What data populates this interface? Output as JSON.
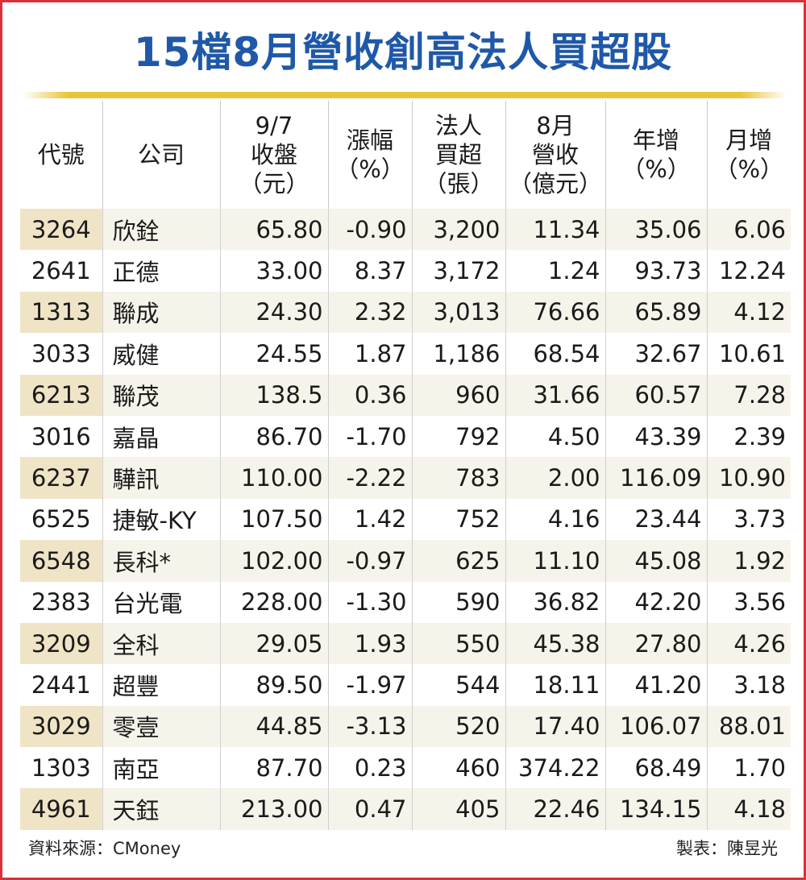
{
  "title": "15檔8月營收創高法人買超股",
  "columns": [
    [
      "代號"
    ],
    [
      "公司"
    ],
    [
      "9/7",
      "收盤",
      "（元）"
    ],
    [
      "漲幅",
      "（%）"
    ],
    [
      "法人",
      "買超",
      "（張）"
    ],
    [
      "8月",
      "營收",
      "（億元）"
    ],
    [
      "年增",
      "（%）"
    ],
    [
      "月增",
      "（%）"
    ]
  ],
  "rows": [
    [
      "3264",
      "欣銓",
      "65.80",
      "-0.90",
      "3,200",
      "11.34",
      "35.06",
      "6.06"
    ],
    [
      "2641",
      "正德",
      "33.00",
      "8.37",
      "3,172",
      "1.24",
      "93.73",
      "12.24"
    ],
    [
      "1313",
      "聯成",
      "24.30",
      "2.32",
      "3,013",
      "76.66",
      "65.89",
      "4.12"
    ],
    [
      "3033",
      "威健",
      "24.55",
      "1.87",
      "1,186",
      "68.54",
      "32.67",
      "10.61"
    ],
    [
      "6213",
      "聯茂",
      "138.5",
      "0.36",
      "960",
      "31.66",
      "60.57",
      "7.28"
    ],
    [
      "3016",
      "嘉晶",
      "86.70",
      "-1.70",
      "792",
      "4.50",
      "43.39",
      "2.39"
    ],
    [
      "6237",
      "驊訊",
      "110.00",
      "-2.22",
      "783",
      "2.00",
      "116.09",
      "10.90"
    ],
    [
      "6525",
      "捷敏-KY",
      "107.50",
      "1.42",
      "752",
      "4.16",
      "23.44",
      "3.73"
    ],
    [
      "6548",
      "長科*",
      "102.00",
      "-0.97",
      "625",
      "11.10",
      "45.08",
      "1.92"
    ],
    [
      "2383",
      "台光電",
      "228.00",
      "-1.30",
      "590",
      "36.82",
      "42.20",
      "3.56"
    ],
    [
      "3209",
      "全科",
      "29.05",
      "1.93",
      "550",
      "45.38",
      "27.80",
      "4.26"
    ],
    [
      "2441",
      "超豐",
      "89.50",
      "-1.97",
      "544",
      "18.11",
      "41.20",
      "3.18"
    ],
    [
      "3029",
      "零壹",
      "44.85",
      "-3.13",
      "520",
      "17.40",
      "106.07",
      "88.01"
    ],
    [
      "1303",
      "南亞",
      "87.70",
      "0.23",
      "460",
      "374.22",
      "68.49",
      "1.70"
    ],
    [
      "4961",
      "天鈺",
      "213.00",
      "0.47",
      "405",
      "22.46",
      "134.15",
      "4.18"
    ]
  ],
  "footer": {
    "source": "資料來源：CMoney",
    "author": "製表：陳昱光"
  },
  "colors": {
    "title": "#1f58a8",
    "rule": "#e9c43a",
    "border": "#d8313a",
    "code_shade": "#efe4c6",
    "row_shade": "#f6f3ea"
  }
}
